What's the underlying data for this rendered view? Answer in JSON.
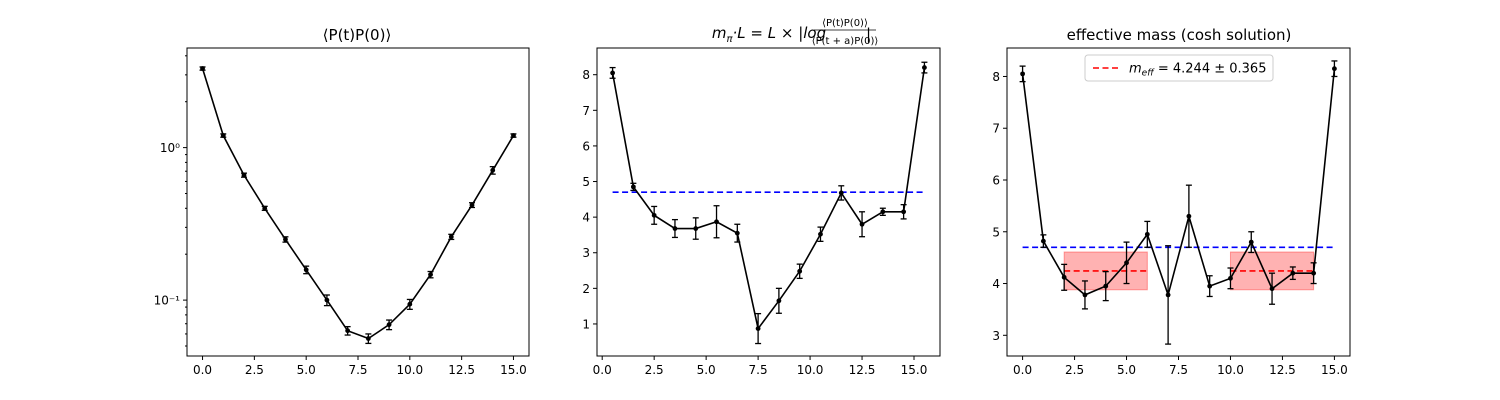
{
  "chart_data": [
    {
      "type": "line",
      "title": "⟨P(t)P(0)⟩",
      "xlabel": "",
      "ylabel": "",
      "yscale": "log",
      "xlim": [
        -0.75,
        15.75
      ],
      "ylim": [
        0.043,
        4.5
      ],
      "xticks": [
        0.0,
        2.5,
        5.0,
        7.5,
        10.0,
        12.5,
        15.0
      ],
      "xtick_labels": [
        "0.0",
        "2.5",
        "5.0",
        "7.5",
        "10.0",
        "12.5",
        "15.0"
      ],
      "yticks": [
        0.1,
        1
      ],
      "ytick_labels": [
        "10⁻¹",
        "10⁰"
      ],
      "series": [
        {
          "color": "#000000",
          "marker": "dot",
          "errorbars": true,
          "x": [
            0,
            1,
            2,
            3,
            4,
            5,
            6,
            7,
            8,
            9,
            10,
            11,
            12,
            13,
            14,
            15
          ],
          "y": [
            3.3,
            1.2,
            0.66,
            0.4,
            0.25,
            0.158,
            0.1,
            0.063,
            0.056,
            0.069,
            0.094,
            0.147,
            0.26,
            0.42,
            0.71,
            1.2
          ],
          "yerr": [
            0.08,
            0.03,
            0.02,
            0.012,
            0.01,
            0.009,
            0.008,
            0.004,
            0.004,
            0.005,
            0.007,
            0.007,
            0.01,
            0.015,
            0.04,
            0.03
          ]
        }
      ]
    },
    {
      "type": "line",
      "title": "m_π·L = L × |log ⟨P(t)P(0)⟩ / ⟨P(t+a)P(0)⟩|",
      "title_parts": {
        "lhs_m": "m",
        "lhs_sub": "π",
        "lhs_rest": "·L = L × |log",
        "numerator": "⟨P(t)P(0)⟩",
        "denominator": "⟨P(t + a)P(0)⟩",
        "close": "|"
      },
      "xlabel": "",
      "ylabel": "",
      "xlim": [
        -0.25,
        16.25
      ],
      "ylim": [
        0.1,
        8.75
      ],
      "xticks": [
        0.0,
        2.5,
        5.0,
        7.5,
        10.0,
        12.5,
        15.0
      ],
      "xtick_labels": [
        "0.0",
        "2.5",
        "5.0",
        "7.5",
        "10.0",
        "12.5",
        "15.0"
      ],
      "yticks": [
        1,
        2,
        3,
        4,
        5,
        6,
        7,
        8
      ],
      "ytick_labels": [
        "1",
        "2",
        "3",
        "4",
        "5",
        "6",
        "7",
        "8"
      ],
      "hlines": [
        {
          "y": 4.7,
          "x_from": 0.5,
          "x_to": 15.5,
          "color": "#0000ff",
          "style": "dashed"
        }
      ],
      "series": [
        {
          "color": "#000000",
          "marker": "dot",
          "errorbars": true,
          "x": [
            0.5,
            1.5,
            2.5,
            3.5,
            4.5,
            5.5,
            6.5,
            7.5,
            8.5,
            9.5,
            10.5,
            11.5,
            12.5,
            13.5,
            14.5,
            15.5
          ],
          "y": [
            8.05,
            4.85,
            4.05,
            3.68,
            3.68,
            3.87,
            3.55,
            0.87,
            1.65,
            2.48,
            3.52,
            4.68,
            3.8,
            4.15,
            4.15,
            8.2
          ],
          "yerr": [
            0.15,
            0.1,
            0.25,
            0.25,
            0.3,
            0.45,
            0.25,
            0.42,
            0.35,
            0.2,
            0.2,
            0.2,
            0.35,
            0.1,
            0.2,
            0.15
          ]
        }
      ]
    },
    {
      "type": "line",
      "title": "effective mass (cosh solution)",
      "xlabel": "",
      "ylabel": "",
      "xlim": [
        -0.75,
        15.75
      ],
      "ylim": [
        2.6,
        8.55
      ],
      "xticks": [
        0.0,
        2.5,
        5.0,
        7.5,
        10.0,
        12.5,
        15.0
      ],
      "xtick_labels": [
        "0.0",
        "2.5",
        "5.0",
        "7.5",
        "10.0",
        "12.5",
        "15.0"
      ],
      "yticks": [
        3,
        4,
        5,
        6,
        7,
        8
      ],
      "ytick_labels": [
        "3",
        "4",
        "5",
        "6",
        "7",
        "8"
      ],
      "legend": {
        "placement": "upper center",
        "entries": [
          {
            "label": "m_eff = 4.244 ± 0.365",
            "label_m": "m",
            "label_sub": "eff",
            "label_rest": " = 4.244 ± 0.365",
            "color": "#ff0000",
            "style": "dashed"
          }
        ]
      },
      "hlines": [
        {
          "y": 4.7,
          "x_from": 0,
          "x_to": 15,
          "color": "#0000ff",
          "style": "dashed"
        }
      ],
      "fit_bands": [
        {
          "x_from": 2,
          "x_to": 6,
          "center": 4.244,
          "low": 3.879,
          "high": 4.609,
          "color": "#ff0000"
        },
        {
          "x_from": 10,
          "x_to": 14,
          "center": 4.244,
          "low": 3.879,
          "high": 4.609,
          "color": "#ff0000"
        }
      ],
      "series": [
        {
          "color": "#000000",
          "marker": "dot",
          "errorbars": true,
          "x": [
            0,
            1,
            2,
            3,
            4,
            5,
            6,
            7,
            8,
            9,
            10,
            11,
            12,
            13,
            14,
            15
          ],
          "y": [
            8.05,
            4.82,
            4.12,
            3.78,
            3.95,
            4.4,
            4.95,
            3.78,
            5.3,
            3.95,
            4.1,
            4.8,
            3.9,
            4.2,
            4.2,
            8.15
          ],
          "yerr": [
            0.15,
            0.12,
            0.25,
            0.27,
            0.28,
            0.4,
            0.25,
            0.95,
            0.6,
            0.2,
            0.2,
            0.2,
            0.3,
            0.12,
            0.2,
            0.15
          ]
        }
      ]
    }
  ]
}
